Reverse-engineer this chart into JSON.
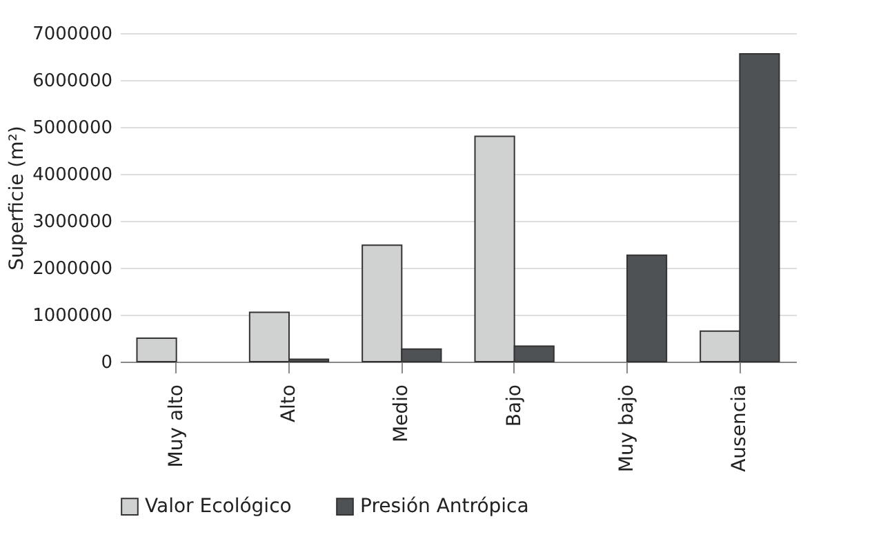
{
  "chart_data": {
    "type": "bar",
    "ylabel": "Superficie (m²)",
    "categories": [
      "Muy alto",
      "Alto",
      "Medio",
      "Bajo",
      "Muy bajo",
      "Ausencia"
    ],
    "series": [
      {
        "name": "Valor Ecológico",
        "color": "#d0d2d1",
        "values": [
          500000,
          1050000,
          2480000,
          4800000,
          null,
          650000
        ]
      },
      {
        "name": "Presión Antrópica",
        "color": "#4f5254",
        "values": [
          null,
          50000,
          270000,
          330000,
          2270000,
          6560000
        ]
      }
    ],
    "ylim": [
      0,
      7000000
    ],
    "yticks": [
      0,
      1000000,
      2000000,
      3000000,
      4000000,
      5000000,
      6000000,
      7000000
    ],
    "grid": "y",
    "legend": "bottom"
  }
}
